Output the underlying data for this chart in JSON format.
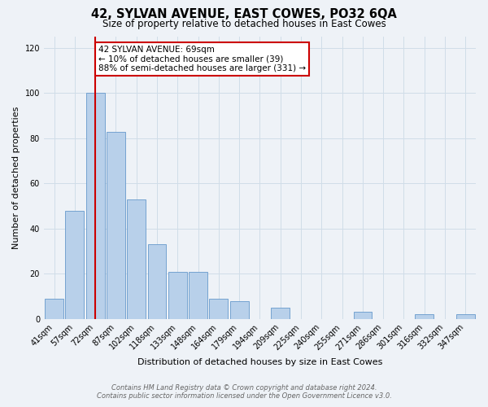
{
  "title": "42, SYLVAN AVENUE, EAST COWES, PO32 6QA",
  "subtitle": "Size of property relative to detached houses in East Cowes",
  "xlabel": "Distribution of detached houses by size in East Cowes",
  "ylabel": "Number of detached properties",
  "bar_labels": [
    "41sqm",
    "57sqm",
    "72sqm",
    "87sqm",
    "102sqm",
    "118sqm",
    "133sqm",
    "148sqm",
    "164sqm",
    "179sqm",
    "194sqm",
    "209sqm",
    "225sqm",
    "240sqm",
    "255sqm",
    "271sqm",
    "286sqm",
    "301sqm",
    "316sqm",
    "332sqm",
    "347sqm"
  ],
  "bar_values": [
    9,
    48,
    100,
    83,
    53,
    33,
    21,
    21,
    9,
    8,
    0,
    5,
    0,
    0,
    0,
    3,
    0,
    0,
    2,
    0,
    2
  ],
  "bar_color": "#b8d0ea",
  "bar_edgecolor": "#6699cc",
  "ylim": [
    0,
    125
  ],
  "yticks": [
    0,
    20,
    40,
    60,
    80,
    100,
    120
  ],
  "annotation_title": "42 SYLVAN AVENUE: 69sqm",
  "annotation_line1": "← 10% of detached houses are smaller (39)",
  "annotation_line2": "88% of semi-detached houses are larger (331) →",
  "annotation_box_color": "#ffffff",
  "annotation_box_edgecolor": "#cc0000",
  "vline_color": "#cc0000",
  "footer1": "Contains HM Land Registry data © Crown copyright and database right 2024.",
  "footer2": "Contains public sector information licensed under the Open Government Licence v3.0.",
  "grid_color": "#d0dde8",
  "background_color": "#eef2f7"
}
